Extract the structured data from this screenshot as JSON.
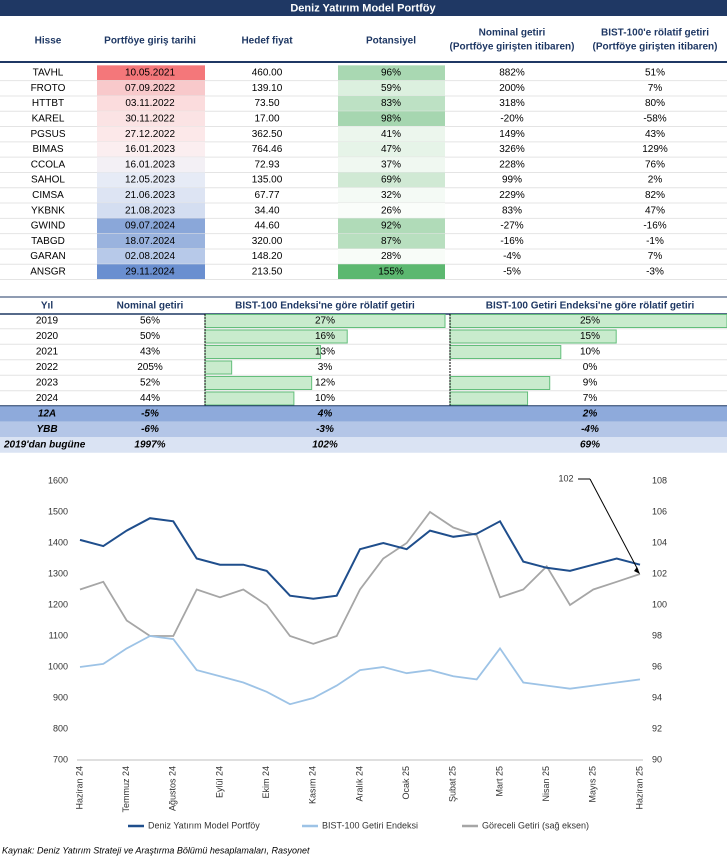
{
  "title": "Deniz Yatırım Model Portföy",
  "portfolio_table": {
    "headers": [
      "Hisse",
      "Portföye giriş tarihi",
      "Hedef fiyat",
      "Potansiyel",
      [
        "Nominal getiri",
        "(Portföye girişten itibaren)"
      ],
      [
        "BIST-100'e rölatif getiri",
        "(Portföye girişten itibaren)"
      ]
    ],
    "rows": [
      [
        "TAVHL",
        "10.05.2021",
        "460.00",
        "96%",
        "882%",
        "51%"
      ],
      [
        "FROTO",
        "07.09.2022",
        "139.10",
        "59%",
        "200%",
        "7%"
      ],
      [
        "HTTBT",
        "03.11.2022",
        "73.50",
        "83%",
        "318%",
        "80%"
      ],
      [
        "KAREL",
        "30.11.2022",
        "17.00",
        "98%",
        "-20%",
        "-58%"
      ],
      [
        "PGSUS",
        "27.12.2022",
        "362.50",
        "41%",
        "149%",
        "43%"
      ],
      [
        "BIMAS",
        "16.01.2023",
        "764.46",
        "47%",
        "326%",
        "129%"
      ],
      [
        "CCOLA",
        "16.01.2023",
        "72.93",
        "37%",
        "228%",
        "76%"
      ],
      [
        "SAHOL",
        "12.05.2023",
        "135.00",
        "69%",
        "99%",
        "2%"
      ],
      [
        "CIMSA",
        "21.06.2023",
        "67.77",
        "32%",
        "229%",
        "82%"
      ],
      [
        "YKBNK",
        "21.08.2023",
        "34.40",
        "26%",
        "83%",
        "47%"
      ],
      [
        "GWIND",
        "09.07.2024",
        "44.60",
        "92%",
        "-27%",
        "-16%"
      ],
      [
        "TABGD",
        "18.07.2024",
        "320.00",
        "87%",
        "-16%",
        "-1%"
      ],
      [
        "GARAN",
        "02.08.2024",
        "148.20",
        "28%",
        "-4%",
        "7%"
      ],
      [
        "ANSGR",
        "29.11.2024",
        "213.50",
        "155%",
        "-5%",
        "-3%"
      ]
    ],
    "date_colors": [
      "#f4777a",
      "#f8c9cb",
      "#fbdcdd",
      "#fbe3e4",
      "#fce8e9",
      "#fbeef0",
      "#f3f0f5",
      "#e6ebf6",
      "#dde4f3",
      "#d4def1",
      "#8aa7d9",
      "#9ab3de",
      "#b7c9e9",
      "#6a8fd0"
    ],
    "potential_colors": [
      "#a9d8b2",
      "#dcf0df",
      "#bde1c4",
      "#a6d6b0",
      "#ecf6ed",
      "#e6f4e8",
      "#f0f8f1",
      "#d0e9d4",
      "#f4faf5",
      "#fafdfa",
      "#b0dbb8",
      "#b8dfbf",
      "#f8fcf8",
      "#5cb870"
    ]
  },
  "returns_table": {
    "headers": [
      "Yıl",
      "Nominal getiri",
      "BIST-100 Endeksi'ne göre rölatif getiri",
      "BIST-100 Getiri Endeksi'ne göre rölatif getiri"
    ],
    "rows": [
      [
        "2019",
        "56%",
        "27%",
        "25%"
      ],
      [
        "2020",
        "50%",
        "16%",
        "15%"
      ],
      [
        "2021",
        "43%",
        "13%",
        "10%"
      ],
      [
        "2022",
        "205%",
        "3%",
        "0%"
      ],
      [
        "2023",
        "52%",
        "12%",
        "9%"
      ],
      [
        "2024",
        "44%",
        "10%",
        "7%"
      ]
    ],
    "summary_rows": [
      [
        "12A",
        "-5%",
        "4%",
        "2%"
      ],
      [
        "YBB",
        "-6%",
        "-3%",
        "-4%"
      ],
      [
        "2019'dan bugüne",
        "1997%",
        "102%",
        "69%"
      ]
    ],
    "summary_colors": [
      "#8eaadb",
      "#b4c6e7",
      "#dae3f3"
    ],
    "bar_color": "#c9ebcd",
    "bar_stroke": "#63be7b"
  },
  "chart_data": {
    "type": "line",
    "categories": [
      "Haziran 24",
      null,
      "Temmuz 24",
      null,
      "Ağustos 24",
      null,
      "Eylül 24",
      null,
      "Ekim 24",
      null,
      "Kasım 24",
      null,
      "Aralık 24",
      null,
      "Ocak 25",
      null,
      "Şubat 25",
      null,
      "Mart 25",
      null,
      "Nisan 25",
      null,
      "Mayıs 25",
      null,
      "Haziran 25"
    ],
    "series": [
      {
        "name": "Deniz Yatırım Model Portföy",
        "color": "#1f4e8c",
        "values": [
          1410,
          1390,
          1440,
          1480,
          1470,
          1350,
          1330,
          1330,
          1310,
          1230,
          1220,
          1230,
          1380,
          1400,
          1380,
          1440,
          1420,
          1430,
          1470,
          1340,
          1320,
          1310,
          1330,
          1350,
          1330
        ]
      },
      {
        "name": "BIST-100 Getiri Endeksi",
        "color": "#9dc3e6",
        "values": [
          1000,
          1010,
          1060,
          1100,
          1090,
          990,
          970,
          950,
          920,
          880,
          900,
          940,
          990,
          1000,
          980,
          990,
          970,
          960,
          1060,
          950,
          940,
          930,
          940,
          950,
          960
        ]
      },
      {
        "name": "Göreceli Getiri (sağ eksen)",
        "color": "#a6a6a6",
        "axis": "y2",
        "values": [
          101,
          101.5,
          99,
          98,
          98,
          101,
          100.5,
          101,
          100,
          98,
          97.5,
          98,
          101,
          103,
          104,
          106,
          105,
          104.5,
          100.5,
          101,
          102.5,
          100,
          101,
          101.5,
          102
        ]
      }
    ],
    "ylim": [
      700,
      1600
    ],
    "yticks": [
      700,
      800,
      900,
      1000,
      1100,
      1200,
      1300,
      1400,
      1500,
      1600
    ],
    "y2lim": [
      90,
      108
    ],
    "y2ticks": [
      90,
      92,
      94,
      96,
      98,
      100,
      102,
      104,
      106,
      108
    ],
    "annotation": "102",
    "legend": "bottom"
  },
  "source": "Kaynak: Deniz Yatırım Strateji ve Araştırma Bölümü hesaplamaları, Rasyonet"
}
